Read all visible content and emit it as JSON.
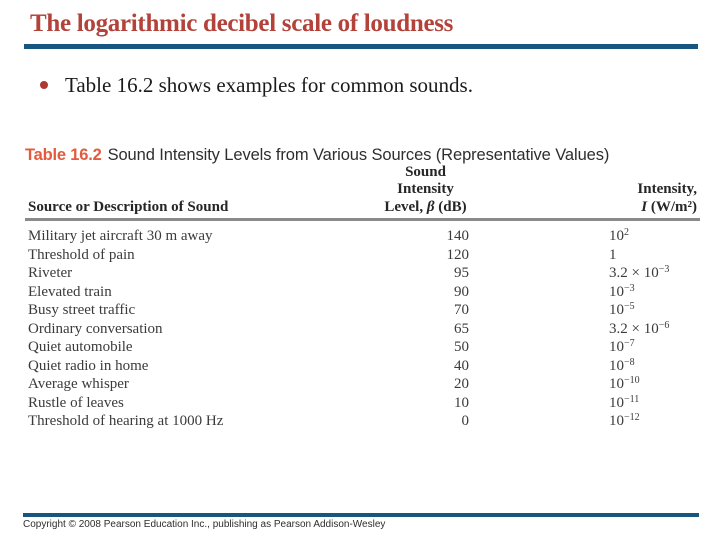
{
  "slide": {
    "title": "The logarithmic decibel scale of loudness",
    "bullet_text": "Table 16.2 shows examples for common sounds.",
    "footer": "Copyright © 2008 Pearson Education Inc., publishing as Pearson Addison-Wesley"
  },
  "colors": {
    "title_red": "#b2423a",
    "rule_blue": "#17567e",
    "table_label_orange": "#e25b3e",
    "header_rule_gray": "#8a8a8a",
    "body_text": "#3b3b3b"
  },
  "table": {
    "label": "Table 16.2",
    "caption": "Sound Intensity Levels from Various Sources (Representative Values)",
    "columns": {
      "source": "Source or Description of Sound",
      "level_line1": "Sound Intensity",
      "level_line2_pre": "Level, ",
      "level_symbol": "β",
      "level_line2_post": " (dB)",
      "intensity_line1": "Intensity,",
      "intensity_symbol": "I",
      "intensity_unit": " (W/m²)"
    },
    "rows": [
      {
        "source": "Military jet aircraft 30 m away",
        "level_db": "140",
        "intensity_base": "10",
        "intensity_exp": "2"
      },
      {
        "source": "Threshold of pain",
        "level_db": "120",
        "intensity_base": "1",
        "intensity_exp": ""
      },
      {
        "source": "Riveter",
        "level_db": "95",
        "intensity_base": "3.2 × 10",
        "intensity_exp": "−3"
      },
      {
        "source": "Elevated train",
        "level_db": "90",
        "intensity_base": "10",
        "intensity_exp": "−3"
      },
      {
        "source": "Busy street traffic",
        "level_db": "70",
        "intensity_base": "10",
        "intensity_exp": "−5"
      },
      {
        "source": "Ordinary conversation",
        "level_db": "65",
        "intensity_base": "3.2 × 10",
        "intensity_exp": "−6"
      },
      {
        "source": "Quiet automobile",
        "level_db": "50",
        "intensity_base": "10",
        "intensity_exp": "−7"
      },
      {
        "source": "Quiet radio in home",
        "level_db": "40",
        "intensity_base": "10",
        "intensity_exp": "−8"
      },
      {
        "source": "Average whisper",
        "level_db": "20",
        "intensity_base": "10",
        "intensity_exp": "−10"
      },
      {
        "source": "Rustle of leaves",
        "level_db": "10",
        "intensity_base": "10",
        "intensity_exp": "−11"
      },
      {
        "source": "Threshold of hearing at 1000 Hz",
        "level_db": "0",
        "intensity_base": "10",
        "intensity_exp": "−12"
      }
    ]
  }
}
